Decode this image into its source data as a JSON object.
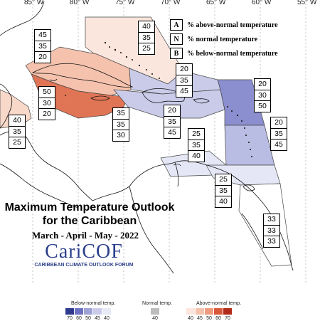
{
  "title": "Maximum Temperature Outlook",
  "title_line2": "for the Caribbean",
  "subtitle": "March - April - May - 2022",
  "logo": "CariCOF",
  "logo_subtitle": "CARIBBEAN CLIMATE OUTLOOK FORUM",
  "longitude_labels": [
    "85° W",
    "80° W",
    "75° W",
    "70° W",
    "65° W",
    "60° W",
    "55° W"
  ],
  "legend": [
    {
      "key": "A",
      "text": "% above-normal temperature"
    },
    {
      "key": "N",
      "text": "% normal temperature"
    },
    {
      "key": "B",
      "text": "% below-normal temperature"
    }
  ],
  "regions": [
    {
      "id": "bahamas",
      "values": [
        "40",
        "35",
        "25"
      ],
      "fill": "#fbe6de"
    },
    {
      "id": "cuba",
      "values": [
        "45",
        "35",
        "20"
      ],
      "fill": "#f5c2ad"
    },
    {
      "id": "cayman-jamaica-south",
      "values": [
        "50",
        "30",
        "20"
      ],
      "fill": "#e07556"
    },
    {
      "id": "central-america",
      "values": [
        "40",
        "35",
        "25"
      ],
      "fill": "#f8d8c9"
    },
    {
      "id": "jamaica",
      "values": [
        "35",
        "35",
        "30"
      ],
      "fill": "#ffffff"
    },
    {
      "id": "turks-caicos",
      "values": [
        "20",
        "35",
        "45"
      ],
      "fill": "#c9cbe9"
    },
    {
      "id": "hispaniola",
      "values": [
        "20",
        "35",
        "45"
      ],
      "fill": "#c9cbe9"
    },
    {
      "id": "leeward-islands",
      "values": [
        "20",
        "30",
        "50"
      ],
      "fill": "#8c8fcf"
    },
    {
      "id": "windward-islands",
      "values": [
        "20",
        "35",
        "45"
      ],
      "fill": "#b9bce3"
    },
    {
      "id": "abc-islands",
      "values": [
        "25",
        "35",
        "40"
      ],
      "fill": "#e6e7f6"
    },
    {
      "id": "trinidad",
      "values": [
        "25",
        "35",
        "40"
      ],
      "fill": "#e6e7f6"
    },
    {
      "id": "guianas",
      "values": [
        "33",
        "33",
        "33"
      ],
      "fill": "#ffffff"
    }
  ],
  "colorbar": {
    "below": {
      "title": "Below-normal temp.",
      "ticks": [
        "70",
        "60",
        "50",
        "45",
        "40"
      ],
      "colors": [
        "#2f3a8f",
        "#6c70c0",
        "#9fa2d6",
        "#c9cbe9",
        "#e8e9f6"
      ]
    },
    "normal": {
      "title": "Normal temp.",
      "ticks": [
        "40"
      ],
      "colors": [
        "#bdbdbd"
      ]
    },
    "above": {
      "title": "Above-normal temp.",
      "ticks": [
        "40",
        "45",
        "50",
        "60",
        "70"
      ],
      "colors": [
        "#fbe6de",
        "#f5c2ad",
        "#ee9a7e",
        "#d9583a",
        "#b02a17"
      ]
    }
  }
}
